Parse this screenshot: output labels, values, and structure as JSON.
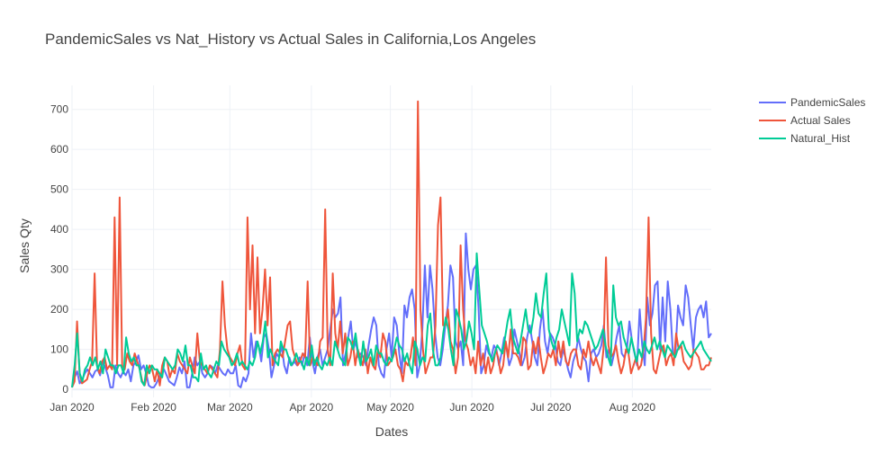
{
  "chart_data": {
    "type": "line",
    "title": "PandemicSales vs Nat_History vs Actual Sales in California,Los Angeles",
    "xlabel": "Dates",
    "ylabel": "Sales Qty",
    "x_start": "2020-01-01",
    "x_end": "2020-08-31",
    "xlim": [
      "2020-01-01",
      "2020-08-31"
    ],
    "ylim": [
      -20,
      760
    ],
    "y_ticks": [
      0,
      100,
      200,
      300,
      400,
      500,
      600,
      700
    ],
    "x_ticks": [
      {
        "date": "2020-01-01",
        "label": "Jan 2020"
      },
      {
        "date": "2020-02-01",
        "label": "Feb 2020"
      },
      {
        "date": "2020-03-01",
        "label": "Mar 2020"
      },
      {
        "date": "2020-04-01",
        "label": "Apr 2020"
      },
      {
        "date": "2020-05-01",
        "label": "May 2020"
      },
      {
        "date": "2020-06-01",
        "label": "Jun 2020"
      },
      {
        "date": "2020-07-01",
        "label": "Jul 2020"
      },
      {
        "date": "2020-08-01",
        "label": "Aug 2020"
      }
    ],
    "grid": true,
    "legend_position": "top-right",
    "series": [
      {
        "name": "PandemicSales",
        "color": "#636efa",
        "values": [
          5,
          30,
          45,
          15,
          25,
          40,
          50,
          40,
          30,
          45,
          50,
          35,
          70,
          55,
          35,
          5,
          5,
          60,
          40,
          30,
          45,
          35,
          50,
          20,
          60,
          70,
          85,
          50,
          60,
          40,
          10,
          5,
          5,
          15,
          30,
          40,
          50,
          35,
          20,
          15,
          10,
          30,
          55,
          40,
          70,
          5,
          5,
          40,
          80,
          60,
          70,
          40,
          30,
          40,
          60,
          55,
          40,
          60,
          50,
          40,
          35,
          50,
          40,
          40,
          60,
          10,
          5,
          30,
          20,
          40,
          140,
          80,
          120,
          110,
          70,
          130,
          140,
          100,
          30,
          60,
          90,
          80,
          110,
          60,
          40,
          80,
          60,
          70,
          60,
          80,
          60,
          90,
          60,
          130,
          70,
          40,
          80,
          100,
          60,
          80,
          100,
          150,
          200,
          180,
          190,
          230,
          60,
          90,
          130,
          170,
          100,
          120,
          80,
          90,
          80,
          60,
          110,
          150,
          180,
          160,
          60,
          40,
          30,
          100,
          140,
          80,
          180,
          160,
          90,
          40,
          210,
          180,
          230,
          250,
          200,
          30,
          60,
          150,
          310,
          180,
          310,
          250,
          140,
          80,
          60,
          100,
          160,
          210,
          310,
          280,
          120,
          100,
          120,
          60,
          390,
          300,
          250,
          300,
          310,
          200,
          40,
          60,
          110,
          90,
          80,
          110,
          100,
          60,
          90,
          130,
          100,
          60,
          80,
          150,
          120,
          90,
          60,
          80,
          130,
          160,
          120,
          80,
          60,
          150,
          200,
          120,
          90,
          140,
          130,
          110,
          70,
          60,
          100,
          80,
          50,
          30,
          70,
          90,
          130,
          100,
          80,
          70,
          20,
          90,
          100,
          80,
          90,
          110,
          160,
          80,
          100,
          60,
          90,
          130,
          160,
          90,
          80,
          100,
          170,
          120,
          90,
          60,
          200,
          110,
          60,
          230,
          160,
          190,
          260,
          270,
          100,
          230,
          120,
          270,
          200,
          90,
          90,
          210,
          180,
          160,
          260,
          230,
          160,
          100,
          180,
          200,
          210,
          180,
          220,
          130,
          140
        ]
      },
      {
        "name": "Actual Sales",
        "color": "#EF553B",
        "values": [
          5,
          20,
          170,
          40,
          15,
          20,
          25,
          50,
          70,
          290,
          60,
          40,
          70,
          80,
          50,
          60,
          50,
          430,
          60,
          480,
          60,
          50,
          90,
          70,
          60,
          90,
          70,
          50,
          20,
          10,
          40,
          60,
          50,
          20,
          50,
          10,
          60,
          80,
          70,
          30,
          50,
          40,
          90,
          70,
          60,
          50,
          40,
          80,
          60,
          40,
          140,
          70,
          60,
          50,
          40,
          60,
          50,
          40,
          30,
          100,
          270,
          160,
          100,
          80,
          70,
          60,
          90,
          110,
          60,
          50,
          430,
          200,
          360,
          140,
          330,
          140,
          200,
          300,
          160,
          280,
          60,
          90,
          100,
          90,
          80,
          120,
          160,
          170,
          100,
          80,
          60,
          70,
          90,
          80,
          270,
          60,
          80,
          70,
          60,
          120,
          130,
          450,
          100,
          60,
          290,
          140,
          100,
          170,
          90,
          140,
          60,
          80,
          120,
          60,
          100,
          80,
          60,
          100,
          40,
          80,
          60,
          50,
          100,
          80,
          140,
          120,
          60,
          70,
          80,
          100,
          60,
          50,
          20,
          70,
          60,
          80,
          130,
          60,
          720,
          200,
          100,
          40,
          60,
          80,
          80,
          160,
          410,
          480,
          160,
          160,
          200,
          120,
          100,
          40,
          80,
          360,
          200,
          120,
          100,
          60,
          80,
          40,
          120,
          60,
          90,
          40,
          80,
          40,
          60,
          100,
          80,
          40,
          60,
          120,
          80,
          150,
          90,
          90,
          80,
          60,
          130,
          120,
          50,
          60,
          120,
          90,
          130,
          80,
          40,
          60,
          90,
          80,
          100,
          60,
          120,
          80,
          120,
          70,
          60,
          90,
          100,
          100,
          60,
          50,
          100,
          80,
          120,
          80,
          60,
          80,
          60,
          40,
          100,
          330,
          110,
          80,
          90,
          110,
          70,
          40,
          60,
          100,
          90,
          40,
          60,
          80,
          50,
          60,
          100,
          180,
          430,
          140,
          50,
          40,
          70,
          100,
          110,
          60,
          80,
          90,
          60,
          140,
          100,
          110,
          70,
          60,
          50,
          60,
          100,
          90,
          80,
          50,
          50,
          60,
          60,
          80
        ]
      },
      {
        "name": "Natural_Hist",
        "color": "#00cc96",
        "values": [
          5,
          60,
          140,
          40,
          20,
          50,
          60,
          80,
          60,
          80,
          50,
          70,
          40,
          100,
          80,
          60,
          60,
          40,
          60,
          60,
          40,
          130,
          90,
          70,
          80,
          60,
          60,
          20,
          10,
          60,
          40,
          60,
          50,
          50,
          40,
          30,
          80,
          70,
          60,
          50,
          60,
          100,
          90,
          70,
          110,
          60,
          60,
          30,
          30,
          20,
          90,
          50,
          60,
          40,
          30,
          50,
          70,
          60,
          120,
          100,
          90,
          80,
          60,
          70,
          90,
          60,
          70,
          60,
          50,
          70,
          60,
          80,
          120,
          90,
          120,
          170,
          80,
          100,
          80,
          70,
          60,
          120,
          100,
          100,
          80,
          60,
          70,
          90,
          70,
          70,
          50,
          80,
          60,
          110,
          60,
          80,
          60,
          50,
          70,
          60,
          80,
          60,
          120,
          100,
          80,
          70,
          60,
          130,
          120,
          100,
          140,
          90,
          60,
          120,
          70,
          80,
          100,
          60,
          110,
          90,
          90,
          70,
          60,
          80,
          70,
          100,
          130,
          110,
          100,
          70,
          90,
          60,
          40,
          120,
          100,
          60,
          80,
          70,
          160,
          190,
          100,
          60,
          60,
          80,
          140,
          180,
          150,
          100,
          60,
          200,
          180,
          150,
          100,
          120,
          170,
          140,
          100,
          340,
          250,
          160,
          140,
          120,
          90,
          70,
          90,
          110,
          100,
          90,
          130,
          170,
          200,
          130,
          110,
          90,
          120,
          160,
          200,
          150,
          140,
          180,
          240,
          190,
          180,
          240,
          290,
          150,
          120,
          100,
          130,
          150,
          200,
          170,
          140,
          110,
          290,
          240,
          120,
          150,
          140,
          170,
          160,
          140,
          120,
          100,
          110,
          130,
          150,
          110,
          80,
          60,
          260,
          180,
          160,
          170,
          130,
          110,
          90,
          130,
          100,
          70,
          100,
          80,
          120,
          100,
          90,
          110,
          130,
          100,
          120,
          100,
          80,
          110,
          100,
          90,
          80,
          100,
          110,
          120,
          100,
          90,
          80,
          90,
          100,
          110,
          120,
          100,
          90,
          80,
          70
        ]
      }
    ]
  }
}
